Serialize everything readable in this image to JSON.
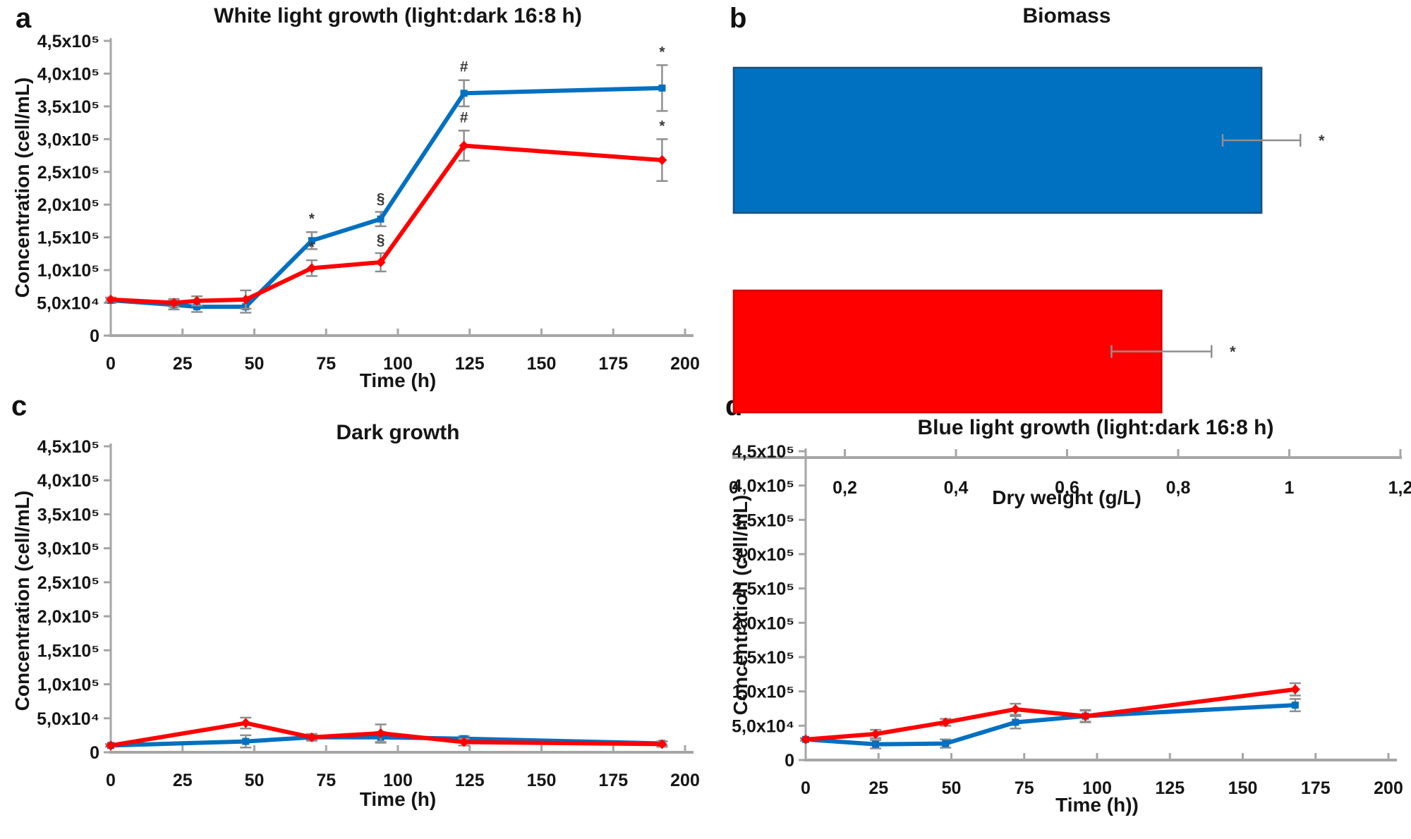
{
  "figure": {
    "kind": "multi-panel growth figure",
    "colors": {
      "blue_series": "#0070C0",
      "blue_bar_border": "#1F4E79",
      "red_series": "#FF0000",
      "red_bar_border": "#D40000",
      "error_bar": "#8f8f8f",
      "axis": "#a6a6a6",
      "text": "#151515",
      "annotation": "#3a3a3a"
    }
  },
  "chart_data": [
    {
      "panel": "a",
      "type": "line",
      "title": "White light growth (light:dark 16:8 h)",
      "xlabel": "Time (h)",
      "ylabel": "Concentration (cell/mL)",
      "xlim": [
        0,
        200
      ],
      "xticks": [
        0,
        25,
        50,
        75,
        100,
        125,
        150,
        175,
        200
      ],
      "ylim": [
        0,
        450000
      ],
      "ytick_labels": [
        "0",
        "5,0x10⁴",
        "1,0x10⁵",
        "1,5x10⁵",
        "2,0x10⁵",
        "2,5x10⁵",
        "3,0x10⁵",
        "3,5x10⁵",
        "4,0x10⁵",
        "4,5x10⁵"
      ],
      "x": [
        0,
        22,
        30,
        47,
        70,
        94,
        123,
        192
      ],
      "series": [
        {
          "name": "blue",
          "color": "#0070C0",
          "marker": "square",
          "values": [
            54000,
            47000,
            44000,
            44000,
            145000,
            178000,
            370000,
            378000
          ],
          "errors": [
            4000,
            7000,
            8000,
            9000,
            13000,
            11000,
            20000,
            35000
          ],
          "annotations": {
            "70": "*",
            "94": "§",
            "123": "#",
            "192": "*"
          }
        },
        {
          "name": "red",
          "color": "#FF0000",
          "marker": "diamond",
          "values": [
            55000,
            50000,
            53000,
            55000,
            103000,
            112000,
            290000,
            268000
          ],
          "errors": [
            3000,
            6000,
            7000,
            14000,
            12000,
            14000,
            23000,
            32000
          ],
          "annotations": {
            "70": "*",
            "94": "§",
            "123": "#",
            "192": "*"
          }
        }
      ]
    },
    {
      "panel": "b",
      "type": "bar",
      "title": "Biomass",
      "xlabel": "Dry weight (g/L)",
      "xlim": [
        0,
        1.2
      ],
      "xtick_labels": [
        "0",
        "0,2",
        "0,4",
        "0,6",
        "0,8",
        "1",
        "1,2"
      ],
      "xtick_values": [
        0,
        0.2,
        0.4,
        0.6,
        0.8,
        1.0,
        1.2
      ],
      "bars": [
        {
          "name": "blue",
          "color": "#0070C0",
          "border": "#1F4E79",
          "value": 0.95,
          "error": 0.07,
          "annotation": "*"
        },
        {
          "name": "red",
          "color": "#FF0000",
          "border": "#D40000",
          "value": 0.77,
          "error": 0.09,
          "annotation": "*"
        }
      ]
    },
    {
      "panel": "c",
      "type": "line",
      "title": "Dark growth",
      "xlabel": "Time (h)",
      "ylabel": "Concentration (cell/mL)",
      "xlim": [
        0,
        200
      ],
      "xticks": [
        0,
        25,
        50,
        75,
        100,
        125,
        150,
        175,
        200
      ],
      "ylim": [
        0,
        450000
      ],
      "ytick_labels": [
        "0",
        "5,0x10⁴",
        "1,0x10⁵",
        "1,5x10⁵",
        "2,0x10⁵",
        "2,5x10⁵",
        "3,0x10⁵",
        "3,5x10⁵",
        "4,0x10⁵",
        "4,5x10⁵"
      ],
      "x": [
        0,
        47,
        70,
        94,
        123,
        192
      ],
      "series": [
        {
          "name": "blue",
          "color": "#0070C0",
          "marker": "square",
          "values": [
            10000,
            16000,
            22000,
            22000,
            20000,
            13000
          ],
          "errors": [
            2000,
            9000,
            4000,
            8000,
            4000,
            3000
          ],
          "annotations": {}
        },
        {
          "name": "red",
          "color": "#FF0000",
          "marker": "diamond",
          "values": [
            10000,
            43000,
            22000,
            28000,
            15000,
            12000
          ],
          "errors": [
            2000,
            8000,
            5000,
            13000,
            5000,
            4000
          ],
          "annotations": {}
        }
      ]
    },
    {
      "panel": "d",
      "type": "line",
      "title": "Blue light growth (light:dark 16:8 h)",
      "xlabel": "Time (h))",
      "ylabel": "Concentration (cell/mL)",
      "xlim": [
        0,
        200
      ],
      "xticks": [
        0,
        25,
        50,
        75,
        100,
        125,
        150,
        175,
        200
      ],
      "ylim": [
        0,
        450000
      ],
      "ytick_labels": [
        "0",
        "5,0x10⁴",
        "1,0x10⁵",
        "1,5x10⁵",
        "2,0x10⁵",
        "2,5x10⁵",
        "3,0x10⁵",
        "3,5x10⁵",
        "4,0x10⁵",
        "4,5x10⁵"
      ],
      "x": [
        0,
        24,
        48,
        72,
        96,
        168
      ],
      "series": [
        {
          "name": "blue",
          "color": "#0070C0",
          "marker": "square",
          "values": [
            30000,
            23000,
            24000,
            55000,
            64000,
            80000
          ],
          "errors": [
            2000,
            6000,
            6000,
            9000,
            8000,
            9000
          ],
          "annotations": {}
        },
        {
          "name": "red",
          "color": "#FF0000",
          "marker": "diamond",
          "values": [
            30000,
            38000,
            55000,
            74000,
            64000,
            103000
          ],
          "errors": [
            2000,
            6000,
            5000,
            8000,
            9000,
            9000
          ],
          "annotations": {}
        }
      ]
    }
  ]
}
